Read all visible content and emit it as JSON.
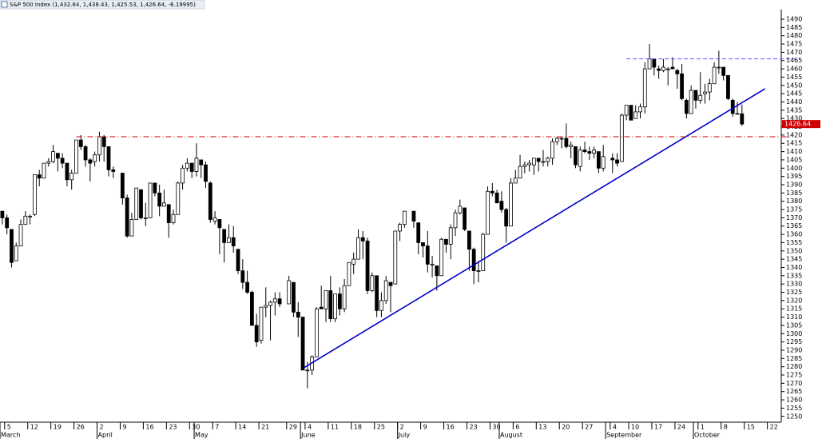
{
  "chart_data": {
    "type": "candlestick",
    "title": "S&P 500 Index (1,432.84, 1,438.43, 1,425.53, 1,426.64, -6.19995)",
    "categories": [
      null,
      "5",
      null,
      null,
      null,
      null,
      "12",
      null,
      null,
      null,
      null,
      "19",
      null,
      null,
      null,
      null,
      "26",
      null,
      null,
      null,
      null,
      "2",
      null,
      null,
      null,
      null,
      "9",
      null,
      null,
      null,
      null,
      "16",
      null,
      null,
      null,
      null,
      "23",
      null,
      null,
      null,
      null,
      "30",
      null,
      null,
      null,
      null,
      "7",
      null,
      null,
      null,
      null,
      "14",
      null,
      null,
      null,
      null,
      "21",
      null,
      null,
      null,
      null,
      null,
      "29",
      null,
      null,
      null,
      "4",
      null,
      null,
      null,
      null,
      "11",
      null,
      null,
      null,
      null,
      "18",
      null,
      null,
      null,
      null,
      "25",
      null,
      null,
      null,
      null,
      "2",
      null,
      null,
      null,
      null,
      "9",
      null,
      null,
      null,
      null,
      "16",
      null,
      null,
      null,
      null,
      "23",
      null,
      null,
      null,
      null,
      "30",
      null,
      null,
      null,
      null,
      "6",
      null,
      null,
      null,
      null,
      "13",
      null,
      null,
      null,
      null,
      "20",
      null,
      null,
      null,
      null,
      "27",
      null,
      null,
      null,
      null,
      null,
      "4",
      null,
      null,
      null,
      "10",
      null,
      null,
      null,
      null,
      "17",
      null,
      null,
      null,
      null,
      "24",
      null,
      null,
      null,
      null,
      "1",
      null,
      null,
      null,
      null,
      "8",
      null,
      null,
      null,
      null,
      "15",
      null,
      null,
      null,
      null,
      "22",
      null,
      null
    ],
    "months": [
      "March",
      null,
      null,
      null,
      null,
      null,
      null,
      null,
      null,
      null,
      null,
      null,
      null,
      null,
      null,
      null,
      null,
      null,
      null,
      null,
      null,
      "April",
      null,
      null,
      null,
      null,
      null,
      null,
      null,
      null,
      null,
      null,
      null,
      null,
      null,
      null,
      null,
      null,
      null,
      null,
      null,
      null,
      "May",
      null,
      null,
      null,
      null,
      null,
      null,
      null,
      null,
      null,
      null,
      null,
      null,
      null,
      null,
      null,
      null,
      null,
      null,
      null,
      null,
      null,
      null,
      "June",
      null,
      null,
      null,
      null,
      null,
      null,
      null,
      null,
      null,
      null,
      null,
      null,
      null,
      null,
      null,
      null,
      null,
      null,
      null,
      null,
      "July",
      null,
      null,
      null,
      null,
      null,
      null,
      null,
      null,
      null,
      null,
      null,
      null,
      null,
      null,
      null,
      null,
      null,
      null,
      null,
      null,
      null,
      "August",
      null,
      null,
      null,
      null,
      null,
      null,
      null,
      null,
      null,
      null,
      null,
      null,
      null,
      null,
      null,
      null,
      null,
      null,
      null,
      null,
      null,
      null,
      "September",
      null,
      null,
      null,
      null,
      null,
      null,
      null,
      null,
      null,
      null,
      null,
      null,
      null,
      null,
      null,
      null,
      null,
      null,
      "October",
      null,
      null,
      null,
      null,
      null,
      null,
      null,
      null,
      null,
      null,
      null,
      null,
      null,
      null,
      null,
      null,
      null
    ],
    "open": [
      1374,
      1370,
      1363,
      1344,
      1353,
      1366,
      1371,
      1372,
      1396,
      1394,
      1403,
      1404,
      1409,
      1406,
      1403,
      1393,
      1397,
      1417,
      1413,
      1405,
      1404,
      1408,
      1419,
      1413,
      1399,
      null,
      1397,
      1382,
      1359,
      1369,
      1387,
      1370,
      1370,
      1391,
      1385,
      1377,
      1378,
      1367,
      1372,
      1391,
      1400,
      1403,
      1398,
      1405,
      1402,
      1391,
      1368,
      1369,
      1363,
      1355,
      1358,
      1351,
      1338,
      1331,
      1325,
      1305,
      1296,
      1316,
      1317,
      1319,
      1321,
      null,
      1318,
      1331,
      1313,
      1310,
      1278,
      1278,
      1286,
      1316,
      1315,
      1326,
      1309,
      1324,
      1315,
      1329,
      1342,
      1345,
      1358,
      1356,
      1326,
      1335,
      1314,
      1320,
      1331,
      1330,
      1362,
      1366,
      null,
      1374,
      1367,
      1355,
      1353,
      1342,
      1341,
      1335,
      1357,
      1354,
      1364,
      1373,
      1376,
      1362,
      1351,
      1338,
      1338,
      1360,
      1386,
      1385,
      1380,
      1375,
      1365,
      1391,
      1394,
      1401,
      1402,
      1402,
      1406,
      1404,
      1404,
      1406,
      1416,
      1418,
      1418,
      1413,
      1413,
      1401,
      1411,
      1410,
      1409,
      1410,
      1400,
      null,
      1406,
      1405,
      1404,
      1432,
      1438,
      1430,
      1434,
      1437,
      1460,
      1466,
      1460,
      1459,
      1460,
      1461,
      1459,
      1457,
      1441,
      1433,
      1447,
      1441,
      1445,
      1446,
      1451,
      1461,
      1461,
      1456,
      1441,
      1433,
      1432.84,
      null,
      null,
      null,
      null,
      null,
      null,
      null,
      null
    ],
    "high": [
      1374,
      1372,
      1363,
      1355,
      1369,
      1374,
      1372,
      1396,
      1399,
      1403,
      1406,
      1414,
      1409,
      1409,
      1403,
      1399,
      1417,
      1420,
      1414,
      1406,
      1410,
      1422,
      1420,
      1413,
      1401,
      null,
      1397,
      1384,
      1373,
      1388,
      1387,
      1379,
      1391,
      1391,
      1390,
      1387,
      1378,
      1375,
      1392,
      1402,
      1406,
      1403,
      1415,
      1405,
      1404,
      1392,
      1374,
      1369,
      1363,
      1366,
      1365,
      1351,
      1345,
      1338,
      1326,
      1312,
      1316,
      1328,
      1320,
      1325,
      1325,
      null,
      1335,
      1331,
      1319,
      1310,
      1283,
      1287,
      1316,
      1329,
      1326,
      1335,
      1324,
      1328,
      1333,
      1343,
      1349,
      1363,
      1362,
      1358,
      1337,
      1335,
      1325,
      1335,
      1331,
      1362,
      1367,
      1374,
      null,
      1374,
      1367,
      1355,
      1362,
      1347,
      1341,
      1358,
      1357,
      1366,
      1375,
      1381,
      1376,
      1362,
      1352,
      1344,
      1361,
      1389,
      1391,
      1387,
      1386,
      1376,
      1394,
      1399,
      1408,
      1404,
      1405,
      1406,
      1406,
      1411,
      1407,
      1418,
      1419,
      1419,
      1427,
      1416,
      1413,
      1413,
      1416,
      1413,
      1413,
      1410,
      1414,
      null,
      1409,
      1409,
      1433,
      1438,
      1438,
      1438,
      1439,
      1464,
      1475,
      1466,
      1462,
      1466,
      1461,
      1467,
      1460,
      1463,
      1442,
      1450,
      1447,
      1458,
      1451,
      1454,
      1464,
      1471,
      1461,
      1456,
      1442,
      1440,
      1438.43,
      null,
      null,
      null,
      null,
      null,
      null,
      null,
      null
    ],
    "low": [
      1366,
      1360,
      1340,
      1344,
      1353,
      1366,
      1366,
      1371,
      1389,
      1394,
      1401,
      1403,
      1398,
      1400,
      1389,
      1387,
      1397,
      1411,
      1401,
      1392,
      1401,
      1404,
      1404,
      1395,
      1394,
      null,
      1378,
      1358,
      1359,
      1369,
      1369,
      1365,
      1370,
      1383,
      1371,
      1377,
      1358,
      1366,
      1372,
      1387,
      1398,
      1394,
      1395,
      1394,
      1388,
      1367,
      1366,
      1348,
      1343,
      1355,
      1349,
      1336,
      1327,
      1324,
      1305,
      1292,
      1294,
      1310,
      1296,
      1311,
      1316,
      null,
      1318,
      1310,
      1298,
      1278,
      1267,
      1275,
      1286,
      1315,
      1307,
      1307,
      1307,
      1311,
      1313,
      1329,
      1336,
      1345,
      1345,
      1324,
      1325,
      1310,
      1310,
      1318,
      1313,
      1330,
      1356,
      1364,
      null,
      1364,
      1348,
      1346,
      1337,
      1334,
      1326,
      1335,
      1349,
      1345,
      1359,
      1372,
      1362,
      1338,
      1330,
      1331,
      1338,
      1360,
      1383,
      1379,
      1373,
      1355,
      1365,
      1391,
      1394,
      1397,
      1398,
      1396,
      1398,
      1401,
      1401,
      1402,
      1414,
      1412,
      1412,
      1406,
      1400,
      1398,
      1409,
      1405,
      1406,
      1397,
      1398,
      null,
      1397,
      1401,
      1404,
      1429,
      1429,
      1430,
      1430,
      1433,
      1460,
      1456,
      1454,
      1458,
      1450,
      1460,
      1448,
      1441,
      1430,
      1433,
      1436,
      1439,
      1439,
      1441,
      1451,
      1457,
      1453,
      1441,
      1431,
      1433,
      1425.53,
      null,
      null,
      null,
      null,
      null,
      null,
      null,
      null
    ],
    "close": [
      1370,
      1364,
      1343,
      1353,
      1366,
      1371,
      1371,
      1396,
      1394,
      1403,
      1404,
      1410,
      1406,
      1403,
      1393,
      1397,
      1417,
      1413,
      1405,
      1403,
      1408,
      1419,
      1413,
      1399,
      1398,
      null,
      1382,
      1359,
      1369,
      1388,
      1370,
      1370,
      1391,
      1385,
      1377,
      1379,
      1367,
      1372,
      1391,
      1400,
      1403,
      1398,
      1406,
      1402,
      1392,
      1369,
      1370,
      1364,
      1355,
      1358,
      1353,
      1338,
      1331,
      1325,
      1305,
      1295,
      1316,
      1317,
      1319,
      1321,
      1318,
      null,
      1332,
      1313,
      1310,
      1278,
      1278,
      1286,
      1315,
      1315,
      1326,
      1309,
      1324,
      1315,
      1329,
      1343,
      1345,
      1358,
      1356,
      1326,
      1335,
      1314,
      1320,
      1332,
      1329,
      1362,
      1366,
      1374,
      null,
      1368,
      1355,
      1353,
      1342,
      1342,
      1335,
      1357,
      1354,
      1364,
      1373,
      1377,
      1363,
      1351,
      1338,
      1338,
      1360,
      1386,
      1385,
      1379,
      1375,
      1365,
      1391,
      1394,
      1401,
      1402,
      1403,
      1406,
      1404,
      1404,
      1406,
      1416,
      1418,
      1418,
      1413,
      1414,
      1402,
      1411,
      1410,
      1409,
      1411,
      1400,
      1407,
      null,
      1405,
      1403,
      1432,
      1438,
      1429,
      1434,
      1437,
      1460,
      1466,
      1461,
      1459,
      1461,
      1460,
      1460,
      1457,
      1442,
      1433,
      1447,
      1441,
      1444,
      1446,
      1451,
      1461,
      1461,
      1456,
      1442,
      1433,
      1433,
      1426.64,
      null,
      null,
      null,
      null,
      null,
      null,
      null,
      null
    ],
    "up_color": "#ffffff",
    "down_color": "#000000",
    "ylim": [
      1246.5,
      1495.8
    ],
    "yticks": [
      1250,
      1255,
      1260,
      1265,
      1270,
      1275,
      1280,
      1285,
      1290,
      1295,
      1300,
      1305,
      1310,
      1315,
      1320,
      1325,
      1330,
      1335,
      1340,
      1345,
      1350,
      1355,
      1360,
      1365,
      1370,
      1375,
      1380,
      1385,
      1390,
      1395,
      1400,
      1405,
      1410,
      1415,
      1420,
      1425,
      1430,
      1435,
      1440,
      1445,
      1450,
      1455,
      1460,
      1465,
      1470,
      1475,
      1480,
      1485,
      1490
    ],
    "lines": [
      {
        "x": [
          65,
          165
        ],
        "y": [
          1279,
          1448
        ],
        "color": "#0000cc",
        "style": "solid"
      },
      {
        "x": [
          16,
          170
        ],
        "y": [
          1419,
          1419
        ],
        "color": "#cc0000",
        "style": "dashdot"
      },
      {
        "x": [
          135,
          171.5
        ],
        "y": [
          1466,
          1466
        ],
        "color": "#5555ff",
        "style": "dashed"
      }
    ],
    "last_price_color": "#cc0000"
  }
}
